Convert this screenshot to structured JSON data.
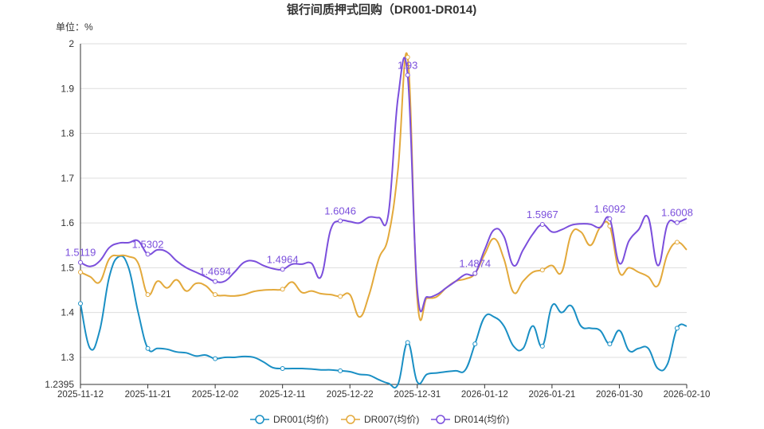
{
  "chart_data": {
    "type": "line",
    "title": "银行间质押式回购（DR001-DR014)",
    "unit_label": "单位：%",
    "x_tick_labels": [
      "2025-11-12",
      "2025-11-21",
      "2025-12-02",
      "2025-12-11",
      "2025-12-22",
      "2025-12-31",
      "2026-01-12",
      "2026-01-21",
      "2026-01-30",
      "2026-02-10"
    ],
    "y_ticks": [
      1.2395,
      1.3,
      1.4,
      1.5,
      1.6,
      1.7,
      1.8,
      1.9,
      2
    ],
    "ylim": [
      1.2395,
      2
    ],
    "grid": true,
    "legend_position": "bottom",
    "marker_indices": [
      0,
      7,
      14,
      21,
      27,
      34,
      41,
      48,
      55,
      62
    ],
    "series": [
      {
        "name": "DR001(均价)",
        "color": "#1a8fc4",
        "values": [
          1.42,
          1.32,
          1.36,
          1.48,
          1.525,
          1.5,
          1.4,
          1.32,
          1.32,
          1.318,
          1.312,
          1.31,
          1.303,
          1.305,
          1.297,
          1.3,
          1.3,
          1.302,
          1.3,
          1.29,
          1.277,
          1.275,
          1.275,
          1.275,
          1.274,
          1.272,
          1.272,
          1.27,
          1.268,
          1.262,
          1.26,
          1.25,
          1.242,
          1.24,
          1.333,
          1.245,
          1.262,
          1.265,
          1.268,
          1.27,
          1.272,
          1.33,
          1.39,
          1.39,
          1.37,
          1.325,
          1.32,
          1.37,
          1.325,
          1.415,
          1.4,
          1.415,
          1.37,
          1.365,
          1.36,
          1.33,
          1.36,
          1.315,
          1.32,
          1.32,
          1.275,
          1.285,
          1.365,
          1.37
        ]
      },
      {
        "name": "DR007(均价)",
        "color": "#e3a93b",
        "values": [
          1.49,
          1.48,
          1.468,
          1.52,
          1.527,
          1.525,
          1.51,
          1.44,
          1.47,
          1.455,
          1.473,
          1.448,
          1.465,
          1.46,
          1.44,
          1.438,
          1.437,
          1.44,
          1.447,
          1.45,
          1.451,
          1.452,
          1.468,
          1.445,
          1.448,
          1.442,
          1.44,
          1.436,
          1.44,
          1.39,
          1.44,
          1.52,
          1.57,
          1.72,
          1.97,
          1.43,
          1.432,
          1.435,
          1.455,
          1.47,
          1.475,
          1.487,
          1.53,
          1.565,
          1.52,
          1.445,
          1.47,
          1.49,
          1.495,
          1.505,
          1.49,
          1.575,
          1.58,
          1.55,
          1.59,
          1.593,
          1.49,
          1.5,
          1.49,
          1.48,
          1.46,
          1.53,
          1.557,
          1.54
        ]
      },
      {
        "name": "DR014(均价)",
        "color": "#7b4fdc",
        "values": [
          1.5119,
          1.503,
          1.515,
          1.545,
          1.555,
          1.556,
          1.56,
          1.5302,
          1.54,
          1.535,
          1.515,
          1.5,
          1.49,
          1.48,
          1.4694,
          1.47,
          1.49,
          1.512,
          1.515,
          1.505,
          1.498,
          1.4964,
          1.508,
          1.508,
          1.51,
          1.48,
          1.585,
          1.6046,
          1.603,
          1.6,
          1.613,
          1.612,
          1.62,
          1.88,
          1.93,
          1.45,
          1.435,
          1.44,
          1.455,
          1.47,
          1.485,
          1.4874,
          1.54,
          1.585,
          1.57,
          1.505,
          1.54,
          1.575,
          1.5967,
          1.58,
          1.585,
          1.595,
          1.598,
          1.597,
          1.59,
          1.6092,
          1.51,
          1.56,
          1.585,
          1.612,
          1.505,
          1.597,
          1.6008,
          1.61
        ]
      }
    ],
    "data_labels": [
      {
        "series": "DR014(均价)",
        "index": 0,
        "text": "1.5119"
      },
      {
        "series": "DR014(均价)",
        "index": 7,
        "text": "1.5302"
      },
      {
        "series": "DR014(均价)",
        "index": 14,
        "text": "1.4694"
      },
      {
        "series": "DR014(均价)",
        "index": 21,
        "text": "1.4964"
      },
      {
        "series": "DR014(均价)",
        "index": 27,
        "text": "1.6046"
      },
      {
        "series": "DR014(均价)",
        "index": 34,
        "text": "1.93"
      },
      {
        "series": "DR014(均价)",
        "index": 41,
        "text": "1.4874"
      },
      {
        "series": "DR014(均价)",
        "index": 48,
        "text": "1.5967"
      },
      {
        "series": "DR014(均价)",
        "index": 55,
        "text": "1.6092"
      },
      {
        "series": "DR014(均价)",
        "index": 62,
        "text": "1.6008"
      }
    ]
  }
}
